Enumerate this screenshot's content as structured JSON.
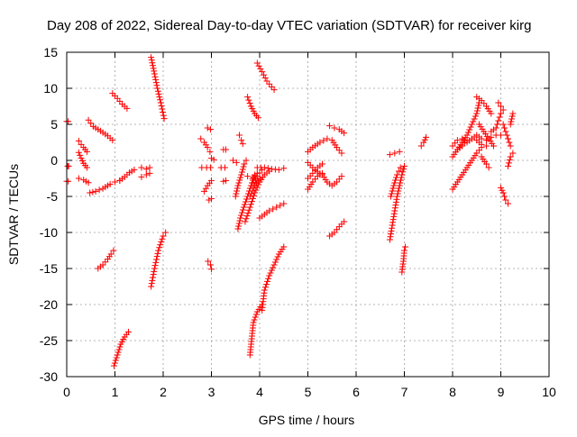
{
  "chart_data": {
    "type": "scatter",
    "title": "Day 208 of 2022, Sidereal Day-to-day VTEC variation (SDTVAR) for receiver kirg",
    "xlabel": "GPS time / hours",
    "ylabel": "SDTVAR / TECUs",
    "xlim": [
      0,
      10
    ],
    "ylim": [
      -30,
      15
    ],
    "xticks": [
      "0",
      "1",
      "2",
      "3",
      "4",
      "5",
      "6",
      "7",
      "8",
      "9",
      "10"
    ],
    "yticks": [
      "-30",
      "-25",
      "-20",
      "-15",
      "-10",
      "-5",
      "0",
      "5",
      "10",
      "15"
    ],
    "grid": true,
    "marker": "plus",
    "color": "#ff0000",
    "segments": [
      [
        [
          0.0,
          5.4
        ],
        [
          0.03,
          5.4
        ]
      ],
      [
        [
          0.0,
          -2.9
        ],
        [
          0.03,
          -2.9
        ]
      ],
      [
        [
          0.02,
          -0.8
        ],
        [
          0.04,
          -0.8
        ]
      ],
      [
        [
          0.25,
          2.7
        ],
        [
          0.3,
          2.2
        ],
        [
          0.35,
          1.8
        ],
        [
          0.42,
          1.2
        ]
      ],
      [
        [
          0.25,
          1.1
        ],
        [
          0.3,
          0.3
        ],
        [
          0.35,
          -0.4
        ],
        [
          0.42,
          -1.0
        ]
      ],
      [
        [
          0.25,
          -2.5
        ],
        [
          0.35,
          -2.7
        ],
        [
          0.45,
          -3.1
        ]
      ],
      [
        [
          0.45,
          5.6
        ],
        [
          0.55,
          4.7
        ],
        [
          0.7,
          4.1
        ],
        [
          0.85,
          3.4
        ],
        [
          0.95,
          2.8
        ]
      ],
      [
        [
          0.48,
          -4.5
        ],
        [
          0.6,
          -4.3
        ],
        [
          0.75,
          -3.9
        ],
        [
          0.9,
          -3.3
        ],
        [
          1.0,
          -3.0
        ],
        [
          1.1,
          -2.8
        ]
      ],
      [
        [
          1.1,
          -2.8
        ],
        [
          1.2,
          -2.3
        ],
        [
          1.3,
          -1.7
        ],
        [
          1.4,
          -1.3
        ]
      ],
      [
        [
          0.65,
          -15.0
        ],
        [
          0.75,
          -14.5
        ],
        [
          0.85,
          -13.7
        ],
        [
          0.92,
          -13.0
        ],
        [
          0.97,
          -12.5
        ]
      ],
      [
        [
          0.95,
          9.3
        ],
        [
          1.05,
          8.6
        ],
        [
          1.15,
          7.8
        ],
        [
          1.25,
          7.2
        ]
      ],
      [
        [
          0.98,
          -28.5
        ],
        [
          1.05,
          -27.0
        ],
        [
          1.12,
          -25.5
        ],
        [
          1.2,
          -24.5
        ],
        [
          1.28,
          -23.8
        ]
      ],
      [
        [
          1.55,
          -1.0
        ],
        [
          1.65,
          -1.2
        ],
        [
          1.72,
          -1.0
        ]
      ],
      [
        [
          1.55,
          -2.3
        ],
        [
          1.65,
          -2.0
        ],
        [
          1.72,
          -1.8
        ]
      ],
      [
        [
          1.75,
          14.3
        ],
        [
          1.82,
          12.0
        ],
        [
          1.88,
          10.0
        ],
        [
          1.95,
          8.0
        ],
        [
          2.02,
          5.8
        ]
      ],
      [
        [
          1.75,
          -17.5
        ],
        [
          1.82,
          -15.0
        ],
        [
          1.9,
          -12.5
        ],
        [
          2.0,
          -10.5
        ],
        [
          2.05,
          -10.0
        ]
      ],
      [
        [
          2.78,
          3.0
        ],
        [
          2.85,
          2.5
        ],
        [
          2.92,
          1.8
        ],
        [
          2.97,
          1.2
        ]
      ],
      [
        [
          2.8,
          -1.0
        ],
        [
          2.9,
          -1.0
        ],
        [
          2.98,
          -1.0
        ]
      ],
      [
        [
          2.85,
          -4.3
        ],
        [
          2.92,
          -3.5
        ],
        [
          3.0,
          -2.8
        ]
      ],
      [
        [
          2.92,
          4.5
        ],
        [
          2.98,
          4.3
        ]
      ],
      [
        [
          2.93,
          -14.0
        ],
        [
          2.98,
          -14.5
        ],
        [
          3.0,
          -15.1
        ]
      ],
      [
        [
          2.95,
          -5.5
        ],
        [
          3.0,
          -5.3
        ]
      ],
      [
        [
          3.0,
          0.3
        ],
        [
          3.05,
          0.1
        ]
      ],
      [
        [
          3.2,
          -1.0
        ],
        [
          3.28,
          -1.0
        ]
      ],
      [
        [
          3.25,
          1.5
        ],
        [
          3.3,
          1.5
        ]
      ],
      [
        [
          3.25,
          -2.9
        ],
        [
          3.3,
          -2.8
        ]
      ],
      [
        [
          3.45,
          0.0
        ],
        [
          3.52,
          -0.3
        ]
      ],
      [
        [
          3.5,
          -5.0
        ],
        [
          3.55,
          -3.5
        ],
        [
          3.62,
          -2.0
        ],
        [
          3.68,
          -0.5
        ],
        [
          3.72,
          0.0
        ]
      ],
      [
        [
          3.55,
          -9.5
        ],
        [
          3.6,
          -8.0
        ],
        [
          3.67,
          -6.5
        ],
        [
          3.75,
          -5.0
        ],
        [
          3.82,
          -3.5
        ],
        [
          3.9,
          -2.0
        ]
      ],
      [
        [
          3.58,
          3.5
        ],
        [
          3.62,
          2.8
        ],
        [
          3.65,
          2.3
        ]
      ],
      [
        [
          3.75,
          -2.2
        ],
        [
          3.85,
          -2.5
        ],
        [
          3.95,
          -1.8
        ]
      ],
      [
        [
          3.75,
          8.8
        ],
        [
          3.82,
          7.5
        ],
        [
          3.9,
          6.5
        ],
        [
          3.97,
          5.9
        ]
      ],
      [
        [
          3.7,
          -8.5
        ],
        [
          3.8,
          -6.5
        ],
        [
          3.9,
          -4.5
        ],
        [
          4.0,
          -3.0
        ],
        [
          4.1,
          -2.0
        ],
        [
          4.2,
          -1.5
        ]
      ],
      [
        [
          3.8,
          -5.0
        ],
        [
          3.9,
          -3.5
        ],
        [
          4.0,
          -2.5
        ]
      ],
      [
        [
          3.8,
          -27.0
        ],
        [
          3.87,
          -22.5
        ],
        [
          3.95,
          -21.0
        ],
        [
          4.05,
          -20.0
        ]
      ],
      [
        [
          3.85,
          -3.5
        ],
        [
          3.95,
          -2.2
        ],
        [
          4.05,
          -1.3
        ]
      ],
      [
        [
          3.95,
          13.5
        ],
        [
          4.05,
          12.3
        ],
        [
          4.15,
          11.0
        ],
        [
          4.25,
          10.2
        ],
        [
          4.3,
          9.8
        ]
      ],
      [
        [
          3.95,
          -1.0
        ],
        [
          4.1,
          -1.0
        ],
        [
          4.25,
          -1.2
        ],
        [
          4.4,
          -1.3
        ],
        [
          4.5,
          -1.1
        ]
      ],
      [
        [
          4.0,
          -8.0
        ],
        [
          4.1,
          -7.5
        ],
        [
          4.2,
          -7.0
        ],
        [
          4.35,
          -6.5
        ],
        [
          4.5,
          -6.0
        ]
      ],
      [
        [
          4.05,
          -20.8
        ],
        [
          4.1,
          -18.0
        ],
        [
          4.2,
          -16.0
        ],
        [
          4.3,
          -14.5
        ],
        [
          4.4,
          -13.0
        ],
        [
          4.5,
          -12.0
        ]
      ],
      [
        [
          5.0,
          1.2
        ],
        [
          5.1,
          1.8
        ],
        [
          5.25,
          2.5
        ],
        [
          5.4,
          3.0
        ],
        [
          5.5,
          2.8
        ],
        [
          5.6,
          1.8
        ],
        [
          5.7,
          1.0
        ]
      ],
      [
        [
          5.0,
          -0.3
        ],
        [
          5.1,
          -1.0
        ],
        [
          5.2,
          -1.6
        ],
        [
          5.3,
          -2.0
        ],
        [
          5.4,
          -3.0
        ],
        [
          5.5,
          -3.5
        ],
        [
          5.6,
          -3.0
        ],
        [
          5.7,
          -2.2
        ]
      ],
      [
        [
          5.0,
          -4.0
        ],
        [
          5.1,
          -3.0
        ],
        [
          5.2,
          -2.2
        ],
        [
          5.3,
          -1.8
        ]
      ],
      [
        [
          5.0,
          -2.5
        ],
        [
          5.1,
          -1.8
        ],
        [
          5.2,
          -1.0
        ],
        [
          5.3,
          -0.5
        ]
      ],
      [
        [
          5.45,
          4.8
        ],
        [
          5.55,
          4.5
        ],
        [
          5.65,
          4.3
        ],
        [
          5.75,
          3.8
        ]
      ],
      [
        [
          5.45,
          -10.5
        ],
        [
          5.55,
          -10.0
        ],
        [
          5.65,
          -9.2
        ],
        [
          5.75,
          -8.5
        ]
      ],
      [
        [
          6.7,
          0.8
        ],
        [
          6.8,
          1.0
        ],
        [
          6.9,
          1.2
        ]
      ],
      [
        [
          6.7,
          -11.0
        ],
        [
          6.75,
          -9.0
        ],
        [
          6.8,
          -7.0
        ],
        [
          6.85,
          -5.0
        ],
        [
          6.9,
          -3.5
        ],
        [
          6.95,
          -2.0
        ],
        [
          7.0,
          -0.8
        ]
      ],
      [
        [
          6.72,
          -5.0
        ],
        [
          6.78,
          -3.5
        ],
        [
          6.85,
          -2.0
        ],
        [
          6.92,
          -1.0
        ]
      ],
      [
        [
          6.95,
          -15.5
        ],
        [
          6.98,
          -14.0
        ],
        [
          7.0,
          -12.5
        ],
        [
          7.02,
          -12.0
        ]
      ],
      [
        [
          7.35,
          2.0
        ],
        [
          7.4,
          2.5
        ],
        [
          7.45,
          3.2
        ]
      ],
      [
        [
          8.0,
          -4.0
        ],
        [
          8.1,
          -3.0
        ],
        [
          8.2,
          -2.0
        ],
        [
          8.3,
          -1.0
        ],
        [
          8.4,
          0.0
        ],
        [
          8.5,
          1.0
        ],
        [
          8.6,
          1.8
        ],
        [
          8.7,
          2.0
        ]
      ],
      [
        [
          8.0,
          0.5
        ],
        [
          8.1,
          1.5
        ],
        [
          8.2,
          2.5
        ],
        [
          8.3,
          3.5
        ],
        [
          8.4,
          5.0
        ],
        [
          8.5,
          6.5
        ],
        [
          8.55,
          8.0
        ]
      ],
      [
        [
          8.0,
          2.0
        ],
        [
          8.1,
          2.8
        ],
        [
          8.2,
          3.0
        ],
        [
          8.3,
          2.5
        ],
        [
          8.4,
          3.0
        ],
        [
          8.5,
          3.5
        ],
        [
          8.6,
          3.0
        ],
        [
          8.7,
          2.8
        ],
        [
          8.8,
          3.2
        ],
        [
          8.9,
          3.5
        ],
        [
          9.0,
          3.5
        ]
      ],
      [
        [
          8.1,
          1.5
        ],
        [
          8.2,
          2.0
        ],
        [
          8.3,
          2.8
        ],
        [
          8.4,
          3.0
        ],
        [
          8.5,
          2.8
        ],
        [
          8.6,
          2.2
        ]
      ],
      [
        [
          8.5,
          8.8
        ],
        [
          8.6,
          8.3
        ],
        [
          8.7,
          7.5
        ],
        [
          8.8,
          6.5
        ]
      ],
      [
        [
          8.55,
          5.0
        ],
        [
          8.65,
          4.0
        ],
        [
          8.75,
          3.0
        ],
        [
          8.85,
          2.0
        ]
      ],
      [
        [
          8.6,
          0.5
        ],
        [
          8.7,
          -0.5
        ],
        [
          8.75,
          -1.0
        ]
      ],
      [
        [
          8.8,
          4.0
        ],
        [
          8.9,
          4.5
        ],
        [
          8.95,
          5.5
        ],
        [
          9.0,
          6.5
        ]
      ],
      [
        [
          8.95,
          8.0
        ],
        [
          9.0,
          7.5
        ],
        [
          9.05,
          7.0
        ]
      ],
      [
        [
          9.0,
          -3.8
        ],
        [
          9.05,
          -4.5
        ],
        [
          9.1,
          -5.5
        ],
        [
          9.15,
          -6.0
        ]
      ],
      [
        [
          9.05,
          5.0
        ],
        [
          9.1,
          4.0
        ],
        [
          9.15,
          3.0
        ],
        [
          9.2,
          2.0
        ]
      ],
      [
        [
          9.15,
          -0.8
        ],
        [
          9.2,
          0.5
        ],
        [
          9.25,
          1.0
        ]
      ],
      [
        [
          9.2,
          5.0
        ],
        [
          9.25,
          6.5
        ]
      ]
    ]
  }
}
